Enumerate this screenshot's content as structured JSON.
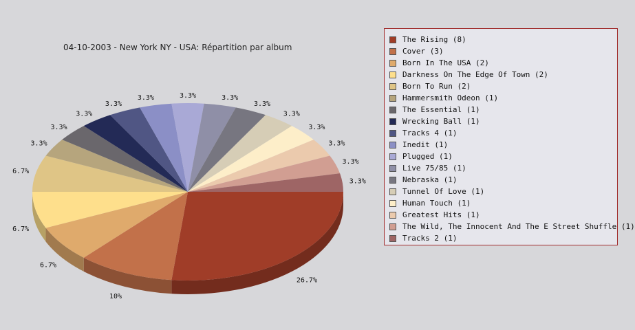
{
  "chart_data": {
    "type": "pie",
    "title": "04-10-2003 - New York NY - USA:  Répartition par album",
    "slices": [
      {
        "label": "The Rising",
        "value": 8,
        "pct_label": "26.7%",
        "color": "#a03d28"
      },
      {
        "label": "Cover",
        "value": 3,
        "pct_label": "10%",
        "color": "#c2714a"
      },
      {
        "label": "Born In The USA",
        "value": 2,
        "pct_label": "6.7%",
        "color": "#dfaa6c"
      },
      {
        "label": "Darkness On The Edge Of Town",
        "value": 2,
        "pct_label": "6.7%",
        "color": "#fedf8c"
      },
      {
        "label": "Born To Run",
        "value": 2,
        "pct_label": "6.7%",
        "color": "#dfc586"
      },
      {
        "label": "Hammersmith Odeon ",
        "value": 1,
        "pct_label": "3.3%",
        "color": "#b6a57d"
      },
      {
        "label": "The Essential",
        "value": 1,
        "pct_label": "3.3%",
        "color": "#6a676c"
      },
      {
        "label": "Wrecking Ball",
        "value": 1,
        "pct_label": "3.3%",
        "color": "#232a56"
      },
      {
        "label": "Tracks 4",
        "value": 1,
        "pct_label": "3.3%",
        "color": "#505684"
      },
      {
        "label": "Inedit",
        "value": 1,
        "pct_label": "3.3%",
        "color": "#8b8fc6"
      },
      {
        "label": "Plugged",
        "value": 1,
        "pct_label": "3.3%",
        "color": "#a9a9d6"
      },
      {
        "label": "Live 75/85",
        "value": 1,
        "pct_label": "3.3%",
        "color": "#8f8fa7"
      },
      {
        "label": "Nebraska",
        "value": 1,
        "pct_label": "3.3%",
        "color": "#777680"
      },
      {
        "label": "Tunnel Of Love",
        "value": 1,
        "pct_label": "3.3%",
        "color": "#d6cdb6"
      },
      {
        "label": "Human Touch",
        "value": 1,
        "pct_label": "3.3%",
        "color": "#fdeec9"
      },
      {
        "label": "Greatest Hits",
        "value": 1,
        "pct_label": "3.3%",
        "color": "#ebcaad"
      },
      {
        "label": "The Wild, The Innocent And The E Street Shuffle",
        "value": 1,
        "pct_label": "3.3%",
        "color": "#d19e92"
      },
      {
        "label": "Tracks 2",
        "value": 1,
        "pct_label": "3.3%",
        "color": "#9e6565"
      }
    ],
    "legend_position": "right"
  }
}
